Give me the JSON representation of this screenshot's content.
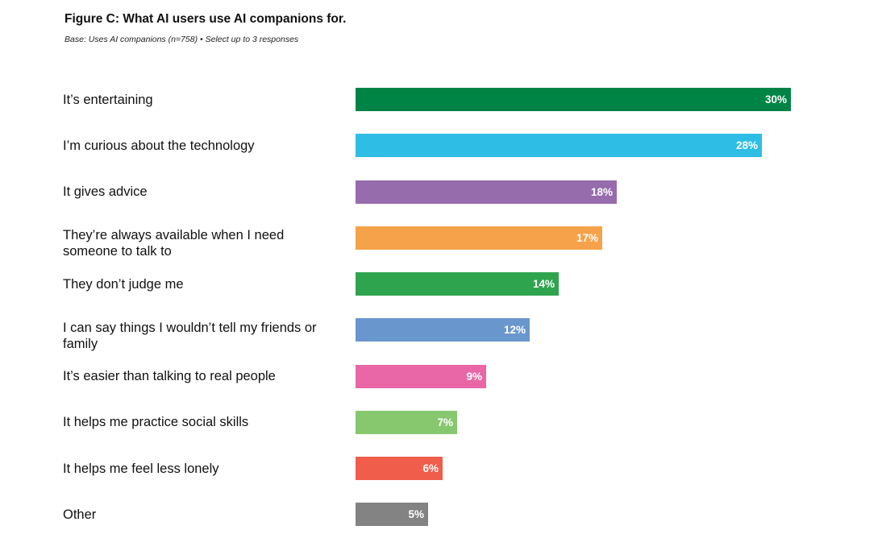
{
  "title": "Figure C: What AI users use AI companions for.",
  "subtitle": "Base: Uses AI companions (n=758) • Select up to 3 responses",
  "chart_data": {
    "type": "bar",
    "orientation": "horizontal",
    "title": "Figure C: What AI users use AI companions for.",
    "subtitle": "Base: Uses AI companions (n=758) • Select up to 3 responses",
    "xlabel": "",
    "ylabel": "",
    "xlim": [
      0,
      30
    ],
    "grid": false,
    "legend": "none",
    "value_format": "percent",
    "categories": [
      "It’s entertaining",
      "I’m curious about the technology",
      "It gives advice",
      "They’re always available when I need someone to talk to",
      "They don’t judge me",
      "I can say things I wouldn’t tell my friends or family",
      "It’s easier than talking to real people",
      "It helps me practice social skills",
      "It helps me feel less lonely",
      "Other"
    ],
    "values": [
      30,
      28,
      18,
      17,
      14,
      12,
      9,
      7,
      6,
      5
    ],
    "value_labels": [
      "30%",
      "28%",
      "18%",
      "17%",
      "14%",
      "12%",
      "9%",
      "7%",
      "6%",
      "5%"
    ],
    "colors": [
      "#008445",
      "#2ebde4",
      "#966cad",
      "#f6a24a",
      "#2fa44f",
      "#6996cd",
      "#e966a7",
      "#87c76e",
      "#f05d4a",
      "#838383"
    ]
  }
}
